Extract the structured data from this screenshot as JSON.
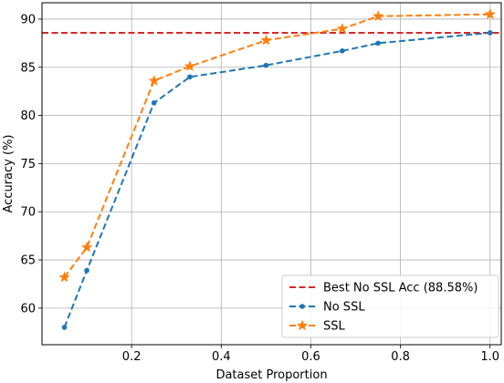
{
  "chart_data": {
    "type": "line",
    "title": "",
    "xlabel": "Dataset Proportion",
    "ylabel": "Accuracy (%)",
    "xlim": [
      0.0,
      1.025
    ],
    "ylim": [
      56.2,
      91.7
    ],
    "xticks": [
      0.2,
      0.4,
      0.6,
      0.8,
      1.0
    ],
    "xtick_labels": [
      "0.2",
      "0.4",
      "0.6",
      "0.8",
      "1.0"
    ],
    "yticks": [
      60,
      65,
      70,
      75,
      80,
      85,
      90
    ],
    "ytick_labels": [
      "60",
      "65",
      "70",
      "75",
      "80",
      "85",
      "90"
    ],
    "grid": true,
    "legend_position": "bottom-right",
    "reference_line": {
      "name": "Best No SSL Acc (88.58%)",
      "y": 88.58,
      "color": "#d62728",
      "style": "dashed"
    },
    "series": [
      {
        "name": "No SSL",
        "color": "#1f77b4",
        "marker": "circle",
        "style": "dashed",
        "x": [
          0.05,
          0.1,
          0.25,
          0.33,
          0.5,
          0.67,
          0.75,
          1.0
        ],
        "y": [
          58.0,
          63.9,
          81.3,
          84.0,
          85.2,
          86.7,
          87.5,
          88.58
        ]
      },
      {
        "name": "SSL",
        "color": "#ff7f0e",
        "marker": "star",
        "style": "dashed",
        "x": [
          0.05,
          0.1,
          0.25,
          0.33,
          0.5,
          0.67,
          0.75,
          1.0
        ],
        "y": [
          63.2,
          66.3,
          83.6,
          85.1,
          87.8,
          89.0,
          90.3,
          90.5
        ]
      }
    ]
  }
}
